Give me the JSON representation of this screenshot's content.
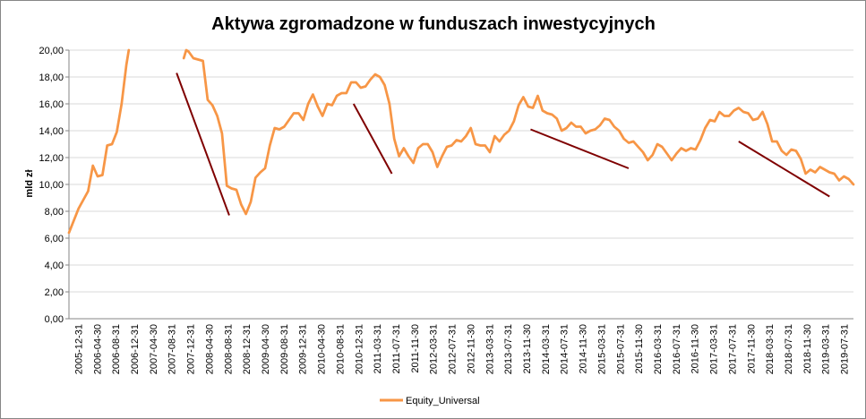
{
  "chart_data": {
    "type": "line",
    "title": "Aktywa zgromadzone w funduszach inwestycyjnych",
    "ylabel": "mld zł",
    "xlabel": "",
    "ylim": [
      0,
      20
    ],
    "y_ticks": [
      "0,00",
      "2,00",
      "4,00",
      "6,00",
      "8,00",
      "10,00",
      "12,00",
      "14,00",
      "16,00",
      "18,00",
      "20,00"
    ],
    "x_ticks": [
      "2005-12-31",
      "2006-04-30",
      "2006-08-31",
      "2006-12-31",
      "2007-04-30",
      "2007-08-31",
      "2007-12-31",
      "2008-04-30",
      "2008-08-31",
      "2008-12-31",
      "2009-04-30",
      "2009-08-31",
      "2009-12-31",
      "2010-04-30",
      "2010-08-31",
      "2010-12-31",
      "2011-03-31",
      "2011-07-31",
      "2011-11-30",
      "2012-03-31",
      "2012-07-31",
      "2012-11-30",
      "2013-03-31",
      "2013-07-31",
      "2013-11-30",
      "2014-03-31",
      "2014-07-31",
      "2014-11-30",
      "2015-03-31",
      "2015-07-31",
      "2015-11-30",
      "2016-03-31",
      "2016-07-31",
      "2016-11-30",
      "2017-03-31",
      "2017-07-31",
      "2017-11-30",
      "2018-03-31",
      "2018-07-31",
      "2018-11-30",
      "2019-03-31",
      "2019-07-31"
    ],
    "grid": true,
    "legend_position": "bottom",
    "colors": {
      "series": "#F79646",
      "trend": "#7F0000"
    },
    "series": [
      {
        "name": "Equity_Universal",
        "values": [
          [
            0,
            6.4
          ],
          [
            2,
            8.2
          ],
          [
            4,
            9.5
          ],
          [
            5,
            11.4
          ],
          [
            6,
            10.6
          ],
          [
            7,
            10.7
          ],
          [
            8,
            12.9
          ],
          [
            9,
            13.0
          ],
          [
            10,
            13.9
          ],
          [
            11,
            16.0
          ],
          [
            12,
            18.9
          ],
          [
            12.5,
            20.0
          ],
          null,
          [
            24,
            19.4
          ],
          [
            24.5,
            20.0
          ],
          [
            25,
            19.9
          ],
          [
            26,
            19.4
          ],
          [
            28,
            19.2
          ],
          [
            29,
            16.3
          ],
          [
            30,
            15.9
          ],
          [
            31,
            15.1
          ],
          [
            32,
            13.8
          ],
          [
            33,
            9.9
          ],
          [
            34,
            9.7
          ],
          [
            35,
            9.6
          ],
          [
            36,
            8.5
          ],
          [
            37,
            7.8
          ],
          [
            38,
            8.7
          ],
          [
            39,
            10.5
          ],
          [
            40,
            10.9
          ],
          [
            41,
            11.2
          ],
          [
            42,
            12.9
          ],
          [
            43,
            14.2
          ],
          [
            44,
            14.1
          ],
          [
            45,
            14.3
          ],
          [
            46,
            14.8
          ],
          [
            47,
            15.3
          ],
          [
            48,
            15.3
          ],
          [
            49,
            14.8
          ],
          [
            50,
            16.0
          ],
          [
            51,
            16.7
          ],
          [
            52,
            15.8
          ],
          [
            53,
            15.1
          ],
          [
            54,
            16.0
          ],
          [
            55,
            15.9
          ],
          [
            56,
            16.6
          ],
          [
            57,
            16.8
          ],
          [
            58,
            16.8
          ],
          [
            59,
            17.6
          ],
          [
            60,
            17.6
          ],
          [
            61,
            17.2
          ],
          [
            62,
            17.3
          ],
          [
            63,
            17.8
          ],
          [
            64,
            18.2
          ],
          [
            65,
            18.0
          ],
          [
            66,
            17.4
          ],
          [
            67,
            16.0
          ],
          [
            68,
            13.4
          ],
          [
            69,
            12.1
          ],
          [
            70,
            12.7
          ],
          [
            71,
            12.1
          ],
          [
            72,
            11.6
          ],
          [
            73,
            12.7
          ],
          [
            74,
            13.0
          ],
          [
            75,
            13.0
          ],
          [
            76,
            12.4
          ],
          [
            77,
            11.3
          ],
          [
            78,
            12.1
          ],
          [
            79,
            12.8
          ],
          [
            80,
            12.9
          ],
          [
            81,
            13.3
          ],
          [
            82,
            13.2
          ],
          [
            83,
            13.6
          ],
          [
            84,
            14.2
          ],
          [
            85,
            13.0
          ],
          [
            86,
            12.9
          ],
          [
            87,
            12.9
          ],
          [
            88,
            12.4
          ],
          [
            89,
            13.6
          ],
          [
            90,
            13.2
          ],
          [
            91,
            13.7
          ],
          [
            92,
            14.0
          ],
          [
            93,
            14.7
          ],
          [
            94,
            15.9
          ],
          [
            95,
            16.5
          ],
          [
            96,
            15.8
          ],
          [
            97,
            15.7
          ],
          [
            98,
            16.6
          ],
          [
            99,
            15.5
          ],
          [
            100,
            15.3
          ],
          [
            101,
            15.2
          ],
          [
            102,
            14.9
          ],
          [
            103,
            14.0
          ],
          [
            104,
            14.2
          ],
          [
            105,
            14.6
          ],
          [
            106,
            14.3
          ],
          [
            107,
            14.3
          ],
          [
            108,
            13.8
          ],
          [
            109,
            14.0
          ],
          [
            110,
            14.1
          ],
          [
            111,
            14.4
          ],
          [
            112,
            14.9
          ],
          [
            113,
            14.8
          ],
          [
            114,
            14.3
          ],
          [
            115,
            14.0
          ],
          [
            116,
            13.4
          ],
          [
            117,
            13.1
          ],
          [
            118,
            13.2
          ],
          [
            119,
            12.8
          ],
          [
            120,
            12.4
          ],
          [
            121,
            11.8
          ],
          [
            122,
            12.2
          ],
          [
            123,
            13.0
          ],
          [
            124,
            12.8
          ],
          [
            125,
            12.3
          ],
          [
            126,
            11.8
          ],
          [
            127,
            12.3
          ],
          [
            128,
            12.7
          ],
          [
            129,
            12.5
          ],
          [
            130,
            12.7
          ],
          [
            131,
            12.6
          ],
          [
            132,
            13.3
          ],
          [
            133,
            14.2
          ],
          [
            134,
            14.8
          ],
          [
            135,
            14.7
          ],
          [
            136,
            15.4
          ],
          [
            137,
            15.1
          ],
          [
            138,
            15.1
          ],
          [
            139,
            15.5
          ],
          [
            140,
            15.7
          ],
          [
            141,
            15.4
          ],
          [
            142,
            15.3
          ],
          [
            143,
            14.8
          ],
          [
            144,
            14.9
          ],
          [
            145,
            15.4
          ],
          [
            146,
            14.5
          ],
          [
            147,
            13.2
          ],
          [
            148,
            13.2
          ],
          [
            149,
            12.5
          ],
          [
            150,
            12.2
          ],
          [
            151,
            12.6
          ],
          [
            152,
            12.5
          ],
          [
            153,
            11.9
          ],
          [
            154,
            10.8
          ],
          [
            155,
            11.1
          ],
          [
            156,
            10.9
          ],
          [
            157,
            11.3
          ],
          [
            158,
            11.1
          ],
          [
            159,
            10.9
          ],
          [
            160,
            10.8
          ],
          [
            161,
            10.3
          ],
          [
            162,
            10.6
          ],
          [
            163,
            10.4
          ],
          [
            164,
            10.0
          ]
        ]
      }
    ],
    "trend_lines": [
      {
        "from": [
          22.5,
          18.3
        ],
        "to": [
          33.5,
          7.7
        ]
      },
      {
        "from": [
          59.5,
          16.0
        ],
        "to": [
          67.5,
          10.8
        ]
      },
      {
        "from": [
          96.5,
          14.1
        ],
        "to": [
          117,
          11.2
        ]
      },
      {
        "from": [
          140,
          13.2
        ],
        "to": [
          159,
          9.1
        ]
      }
    ],
    "x_domain": [
      0,
      164
    ]
  }
}
